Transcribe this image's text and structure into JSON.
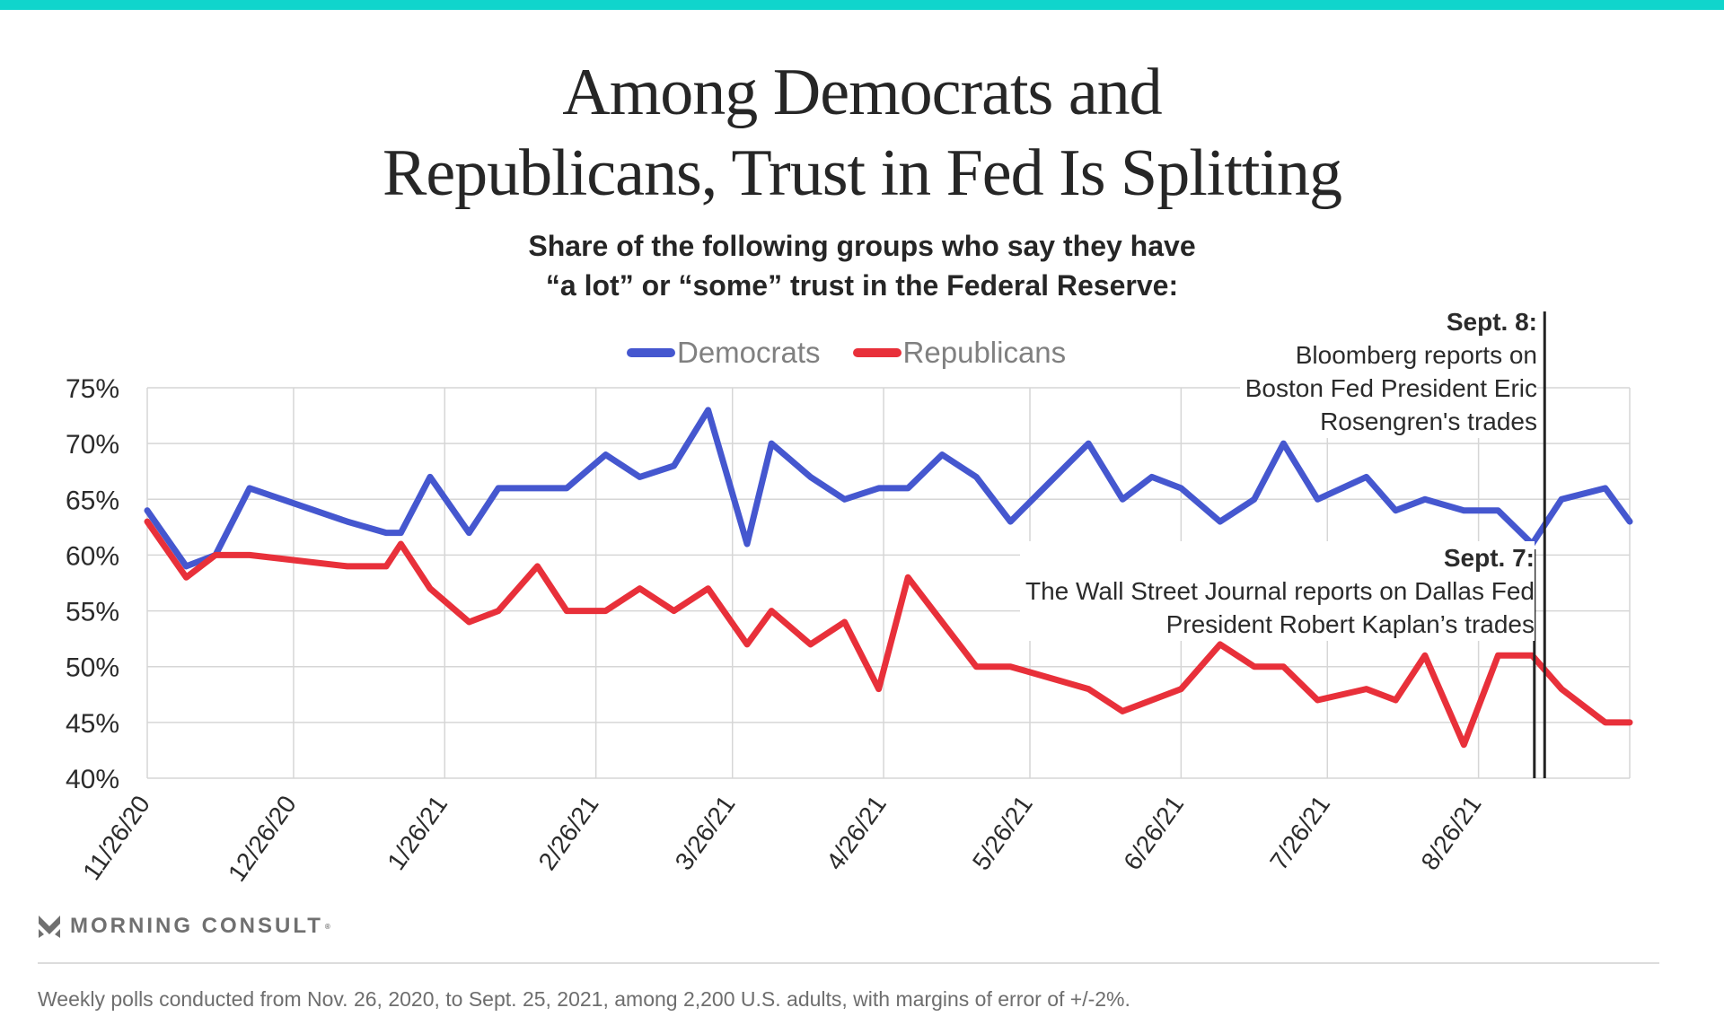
{
  "brand_color": "#10d5cc",
  "title_lines": [
    "Among Democrats and",
    "Republicans, Trust in Fed Is Splitting"
  ],
  "subtitle_lines": [
    "Share of the following groups who say they have",
    "“a lot” or “some” trust in the Federal Reserve:"
  ],
  "legend": [
    {
      "name": "Democrats",
      "color": "#4557cf"
    },
    {
      "name": "Republicans",
      "color": "#e8303a"
    }
  ],
  "annotations": [
    {
      "heading": "Sept. 8:",
      "lines": [
        "Bloomberg reports on",
        "Boston Fed President Eric",
        "Rosengren's trades"
      ],
      "day": 286
    },
    {
      "heading": "Sept. 7:",
      "lines": [
        "The Wall Street Journal reports on Dallas Fed",
        "President Robert Kaplan’s trades"
      ],
      "day": 285
    }
  ],
  "logo": {
    "text": "MORNING CONSULT",
    "icon": "morning-consult-chevron-icon"
  },
  "footnote": "Weekly polls conducted from Nov. 26, 2020, to Sept. 25, 2021, among 2,200 U.S. adults, with margins of error of +/-2%.",
  "chart_data": {
    "type": "line",
    "title": "Among Democrats and Republicans, Trust in Fed Is Splitting",
    "subtitle": "Share of the following groups who say they have “a lot” or “some” trust in the Federal Reserve:",
    "xlabel": "",
    "ylabel": "",
    "x_unit": "days since 11/26/20",
    "xlim": [
      0,
      304
    ],
    "ylim": [
      40,
      75
    ],
    "y_ticks": [
      40,
      45,
      50,
      55,
      60,
      65,
      70,
      75
    ],
    "y_tick_labels": [
      "40%",
      "45%",
      "50%",
      "55%",
      "60%",
      "65%",
      "70%",
      "75%"
    ],
    "x_ticks": [
      0,
      30,
      61,
      92,
      120,
      151,
      181,
      212,
      242,
      273
    ],
    "x_tick_labels": [
      "11/26/20",
      "12/26/20",
      "1/26/21",
      "2/26/21",
      "3/26/21",
      "4/26/21",
      "5/26/21",
      "6/26/21",
      "7/26/21",
      "8/26/21"
    ],
    "grid": true,
    "legend_position": "top-center",
    "x": [
      0,
      8,
      14,
      21,
      41,
      49,
      52,
      58,
      66,
      72,
      80,
      86,
      94,
      101,
      108,
      115,
      123,
      128,
      136,
      143,
      150,
      156,
      163,
      170,
      177,
      185,
      193,
      200,
      206,
      212,
      220,
      227,
      233,
      240,
      250,
      256,
      262,
      270,
      277,
      284,
      290,
      299,
      304
    ],
    "series": [
      {
        "name": "Democrats",
        "color": "#4557cf",
        "values": [
          64,
          59,
          60,
          66,
          63,
          62,
          62,
          67,
          62,
          66,
          66,
          66,
          69,
          67,
          68,
          73,
          61,
          70,
          67,
          65,
          66,
          66,
          69,
          67,
          63,
          66.5,
          70,
          65,
          67,
          66,
          63,
          65,
          70,
          65,
          67,
          64,
          65,
          64,
          64,
          61,
          65,
          66,
          63
        ]
      },
      {
        "name": "Republicans",
        "color": "#e8303a",
        "values": [
          63,
          58,
          60,
          60,
          59,
          59,
          61,
          57,
          54,
          55,
          59,
          55,
          55,
          57,
          55,
          57,
          52,
          55,
          52,
          54,
          48,
          58,
          54,
          50,
          50,
          49,
          48,
          46,
          47,
          48,
          52,
          50,
          50,
          47,
          48,
          47,
          51,
          43,
          51,
          51,
          48,
          45,
          45
        ]
      }
    ],
    "annotations": [
      {
        "label": "Sept. 8: Bloomberg reports on Boston Fed President Eric Rosengren's trades",
        "x": 286
      },
      {
        "label": "Sept. 7: The Wall Street Journal reports on Dallas Fed President Robert Kaplan’s trades",
        "x": 285
      }
    ]
  }
}
